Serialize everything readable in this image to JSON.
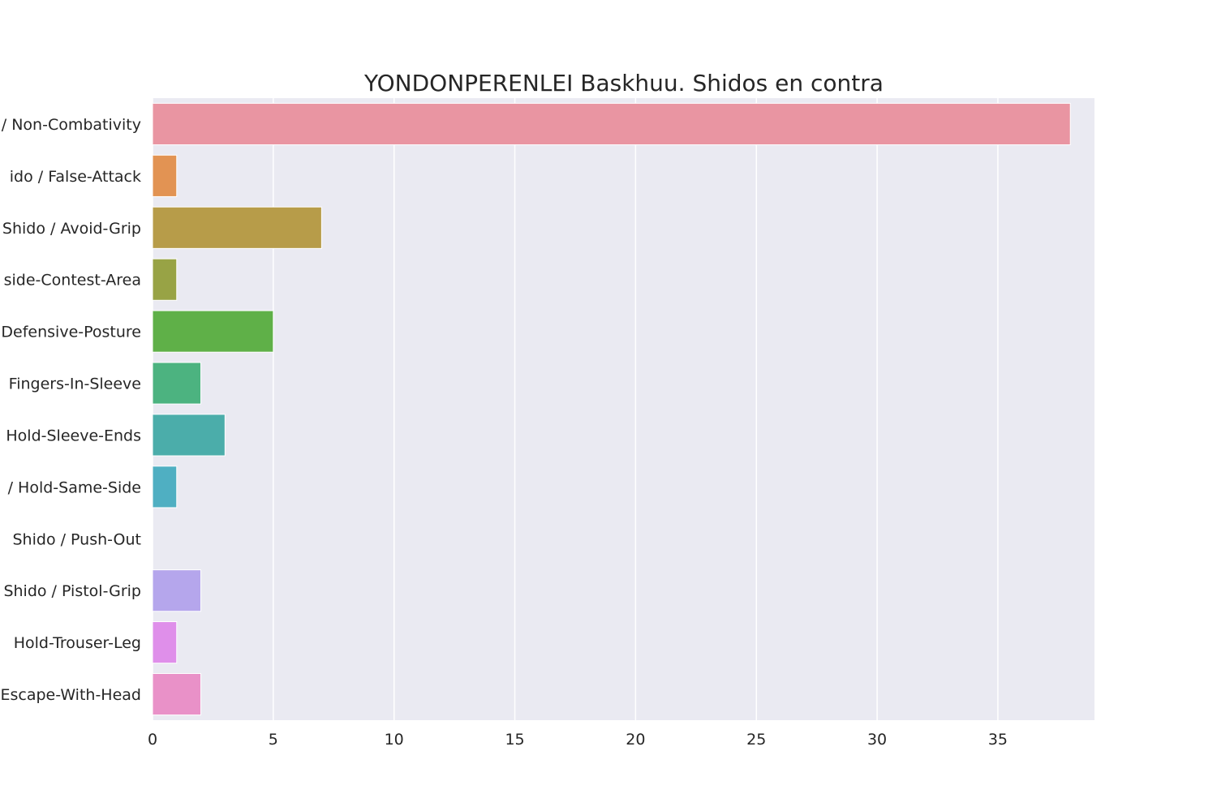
{
  "chart_data": {
    "type": "bar",
    "orientation": "horizontal",
    "title": "YONDONPERENLEI Baskhuu. Shidos en contra",
    "xlabel": "",
    "ylabel": "",
    "categories": [
      "Shido / Non-Combativity",
      "Shido / False-Attack",
      "Shido / Avoid-Grip",
      "Shido / Outside-Contest-Area",
      "Shido / Defensive-Posture",
      "Shido / Fingers-In-Sleeve",
      "Shido / Hold-Sleeve-Ends",
      "Shido / Hold-Same-Side",
      "Shido / Push-Out",
      "Shido / Pistol-Grip",
      "Shido / Hold-Trouser-Leg",
      "Shido / Escape-With-Head"
    ],
    "displayed_category_text": [
      "/ Non-Combativity",
      "ido / False-Attack",
      "Shido / Avoid-Grip",
      "side-Contest-Area",
      "Defensive-Posture",
      "Fingers-In-Sleeve",
      "Hold-Sleeve-Ends",
      "/ Hold-Same-Side",
      "Shido / Push-Out",
      "Shido / Pistol-Grip",
      "Hold-Trouser-Leg",
      "Escape-With-Head"
    ],
    "values": [
      38,
      1,
      7,
      1,
      5,
      2,
      3,
      1,
      0,
      2,
      1,
      2
    ],
    "colors": [
      "#e995a2",
      "#e29353",
      "#b79c49",
      "#98a345",
      "#5fb048",
      "#4cb380",
      "#4badaa",
      "#4fafc2",
      "#7aaee6",
      "#b5a6ec",
      "#df8fea",
      "#e991c8"
    ],
    "xlim": [
      0,
      39
    ],
    "xticks": [
      0,
      5,
      10,
      15,
      20,
      25,
      30,
      35
    ],
    "grid": true,
    "legend": "none",
    "style": {
      "background": "#eaeaf2",
      "grid_color": "#ffffff",
      "text_color": "#262626"
    }
  }
}
